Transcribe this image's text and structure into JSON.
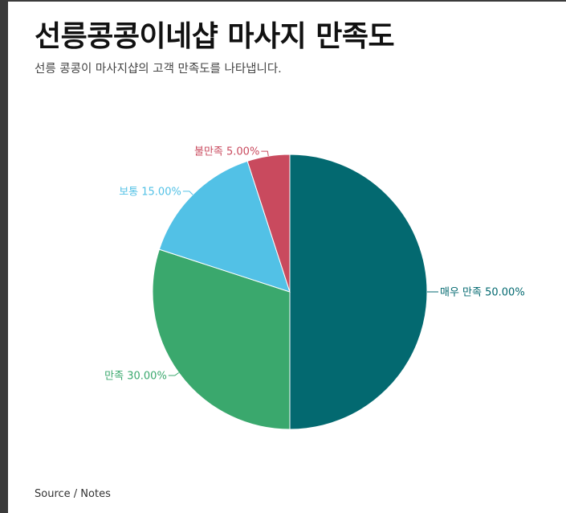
{
  "title": "선릉콩콩이네샵 마사지 만족도",
  "subtitle": "선릉 콩콩이 마사지샵의 고객 만족도를 나타냅니다.",
  "source": "Source / Notes",
  "chart_data": {
    "type": "pie",
    "categories": [
      "매우 만족",
      "만족",
      "보통",
      "불만족"
    ],
    "values": [
      50.0,
      30.0,
      15.0,
      5.0
    ],
    "labels": [
      "매우 만족 50.00%",
      "만족 30.00%",
      "보통 15.00%",
      "불만족 5.00%"
    ],
    "colors": [
      "#036970",
      "#3aa86d",
      "#52c1e6",
      "#c94a5e"
    ],
    "start_angle": "12 o'clock",
    "direction": "clockwise"
  }
}
